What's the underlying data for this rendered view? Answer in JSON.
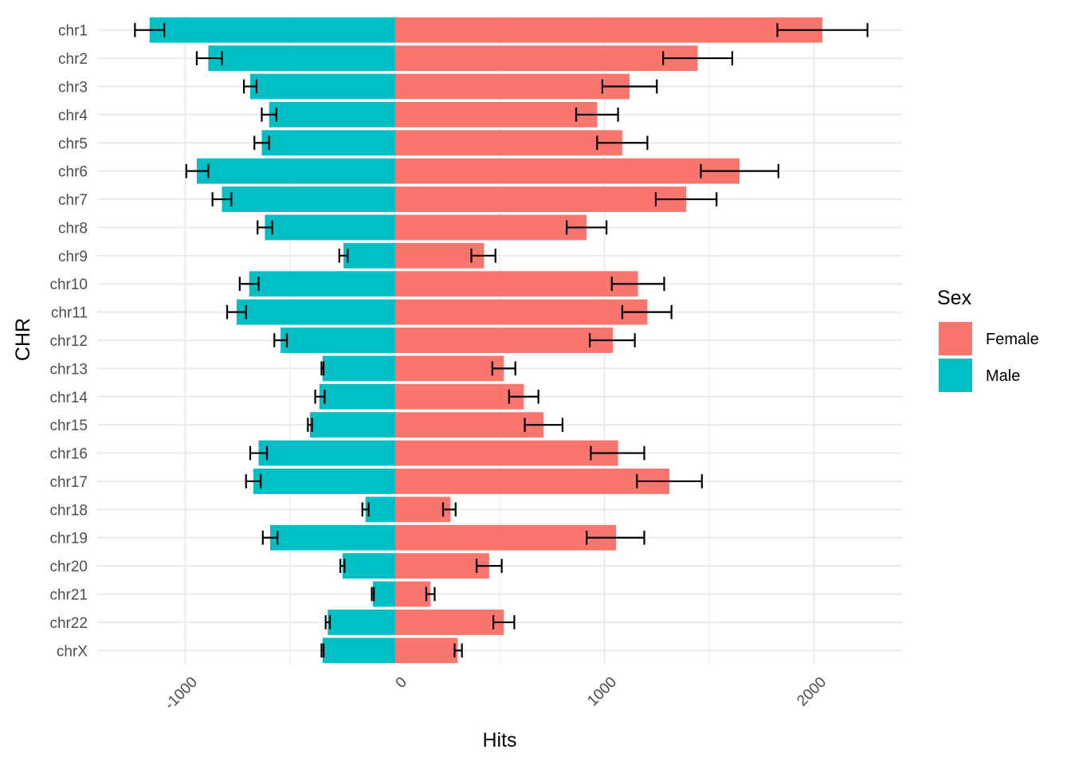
{
  "chart_data": {
    "type": "bar",
    "orientation": "horizontal",
    "stacking": "diverging",
    "categories": [
      "chr1",
      "chr2",
      "chr3",
      "chr4",
      "chr5",
      "chr6",
      "chr7",
      "chr8",
      "chr9",
      "chr10",
      "chr11",
      "chr12",
      "chr13",
      "chr14",
      "chr15",
      "chr16",
      "chr17",
      "chr18",
      "chr19",
      "chr20",
      "chr21",
      "chr22",
      "chrX"
    ],
    "series": [
      {
        "name": "Female",
        "color": "#F8766D",
        "values": [
          2040,
          1445,
          1120,
          965,
          1085,
          1645,
          1390,
          915,
          425,
          1160,
          1205,
          1040,
          520,
          615,
          710,
          1065,
          1310,
          265,
          1055,
          450,
          170,
          520,
          300
        ],
        "error_low": [
          1825,
          1280,
          990,
          865,
          965,
          1460,
          1245,
          820,
          365,
          1035,
          1085,
          930,
          465,
          545,
          620,
          935,
          1155,
          230,
          915,
          390,
          150,
          470,
          285
        ],
        "error_high": [
          2255,
          1610,
          1250,
          1065,
          1205,
          1830,
          1535,
          1010,
          480,
          1285,
          1320,
          1145,
          575,
          685,
          800,
          1190,
          1465,
          290,
          1190,
          510,
          190,
          570,
          320
        ]
      },
      {
        "name": "Male",
        "color": "#00BFC4",
        "values": [
          -1170,
          -890,
          -690,
          -600,
          -635,
          -945,
          -825,
          -620,
          -245,
          -695,
          -755,
          -545,
          -345,
          -360,
          -405,
          -650,
          -675,
          -140,
          -595,
          -250,
          -105,
          -320,
          -345
        ],
        "error_low": [
          -1240,
          -945,
          -720,
          -635,
          -670,
          -995,
          -870,
          -655,
          -265,
          -740,
          -800,
          -575,
          -350,
          -380,
          -415,
          -690,
          -710,
          -155,
          -630,
          -260,
          -110,
          -330,
          -350
        ],
        "error_high": [
          -1100,
          -825,
          -660,
          -565,
          -600,
          -890,
          -780,
          -585,
          -225,
          -650,
          -710,
          -515,
          -340,
          -335,
          -395,
          -610,
          -640,
          -125,
          -560,
          -240,
          -100,
          -310,
          -340
        ]
      }
    ],
    "xlabel": "Hits",
    "ylabel": "CHR",
    "xlim": [
      -1420,
      2420
    ],
    "x_ticks": [
      -1000,
      0,
      1000,
      2000
    ],
    "x_tick_labels": [
      "-1000",
      "0",
      "1000",
      "2000"
    ],
    "grid": true,
    "legend": {
      "title": "Sex",
      "position": "right",
      "entries": [
        "Female",
        "Male"
      ]
    }
  }
}
